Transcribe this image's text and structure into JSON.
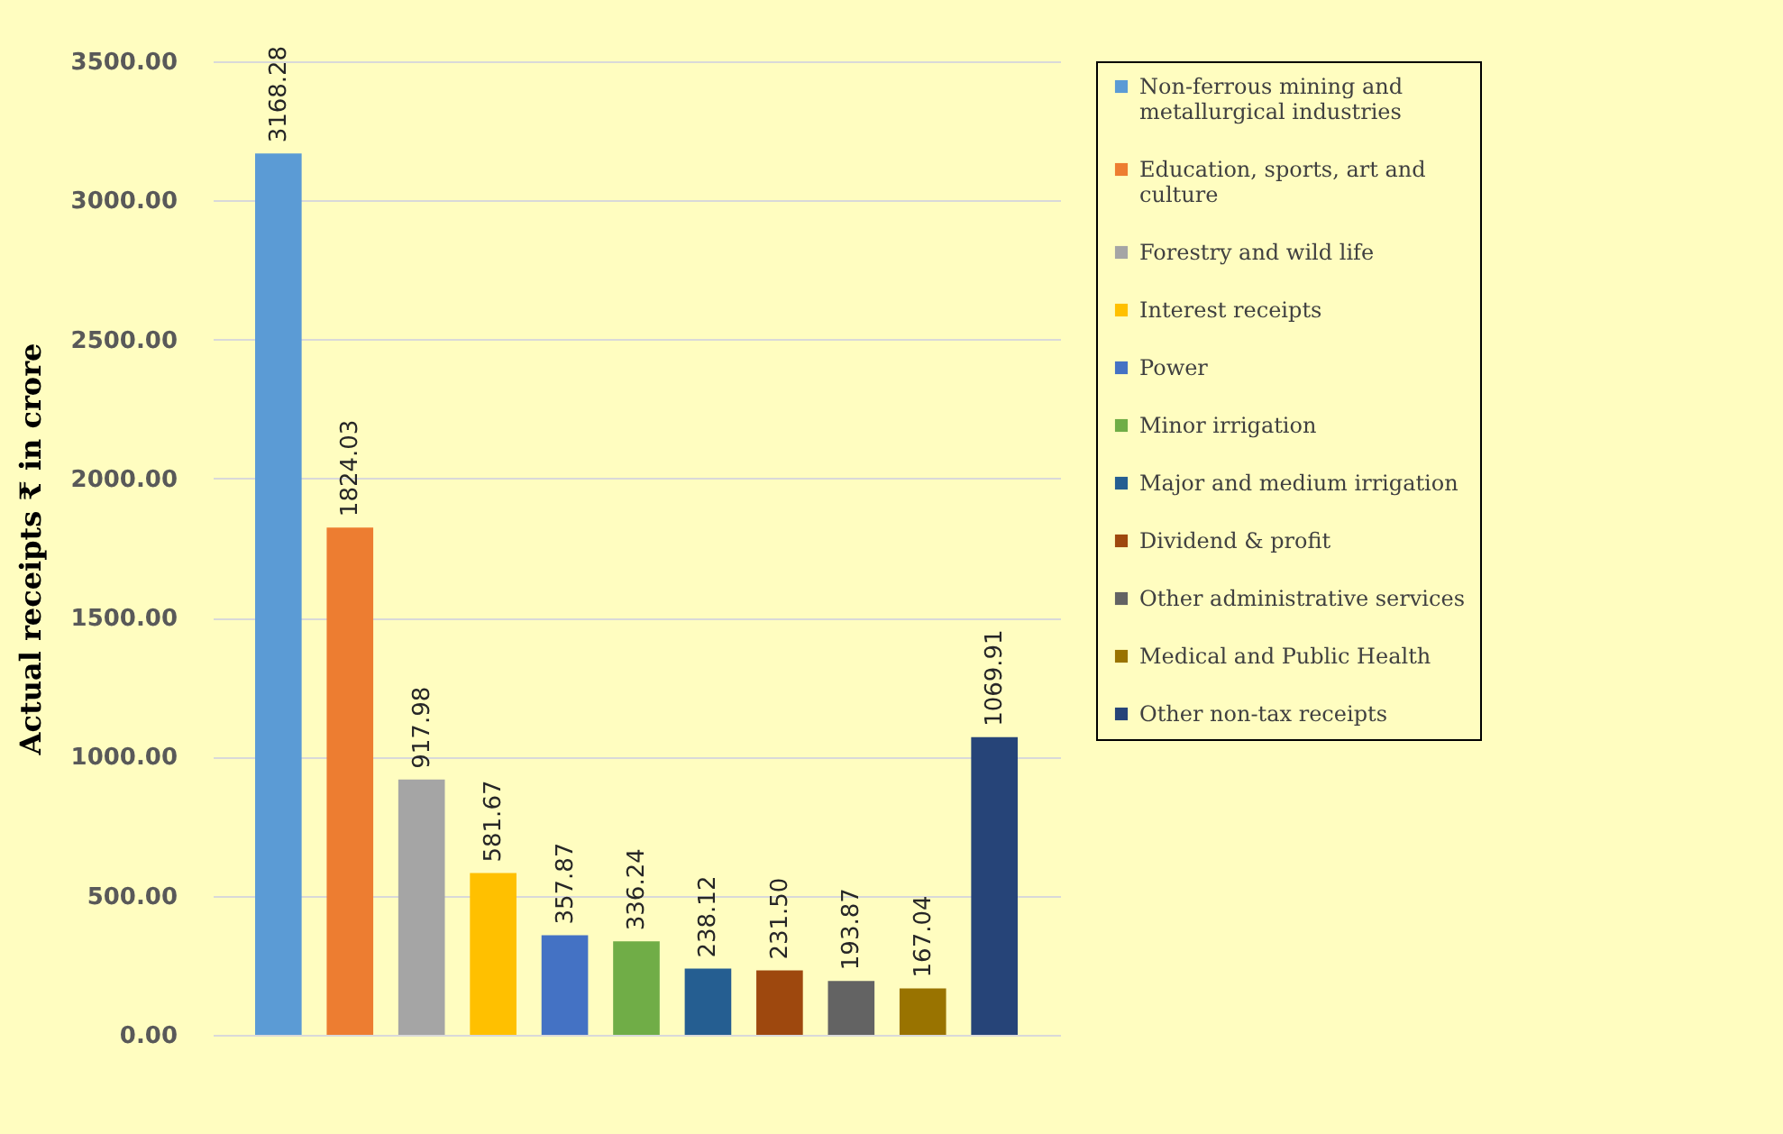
{
  "chart_data": {
    "type": "bar",
    "ylabel": "Actual receipts ₹ in crore",
    "categories": [
      null
    ],
    "series": [
      {
        "name": "Non-ferrous mining and metallurgical industries",
        "color": "#5b9bd5",
        "values": [
          3168.28
        ],
        "value_labels": [
          "3168.28"
        ]
      },
      {
        "name": "Education,   sports, art and culture",
        "color": "#ed7d31",
        "values": [
          1824.03
        ],
        "value_labels": [
          "1824.03"
        ]
      },
      {
        "name": "Forestry and wild life",
        "color": "#a5a5a5",
        "values": [
          917.98
        ],
        "value_labels": [
          "917.98"
        ]
      },
      {
        "name": "Interest receipts",
        "color": "#ffc000",
        "values": [
          581.67
        ],
        "value_labels": [
          "581.67"
        ]
      },
      {
        "name": "Power",
        "color": "#4472c4",
        "values": [
          357.87
        ],
        "value_labels": [
          "357.87"
        ]
      },
      {
        "name": "Minor irrigation",
        "color": "#70ad47",
        "values": [
          336.24
        ],
        "value_labels": [
          "336.24"
        ]
      },
      {
        "name": "Major and medium irrigation",
        "color": "#255e91",
        "values": [
          238.12
        ],
        "value_labels": [
          "238.12"
        ]
      },
      {
        "name": "Dividend & profit",
        "color": "#9e480e",
        "values": [
          231.5
        ],
        "value_labels": [
          "231.50"
        ]
      },
      {
        "name": "Other administrative services",
        "color": "#636363",
        "values": [
          193.87
        ],
        "value_labels": [
          "193.87"
        ]
      },
      {
        "name": "Medical and Public Health",
        "color": "#997300",
        "values": [
          167.04
        ],
        "value_labels": [
          "167.04"
        ]
      },
      {
        "name": "Other non-tax receipts",
        "color": "#264478",
        "values": [
          1069.91
        ],
        "value_labels": [
          "1069.91"
        ]
      }
    ],
    "ylim": [
      0,
      3500
    ],
    "yticks": [
      {
        "value": 0,
        "label": "0.00"
      },
      {
        "value": 500,
        "label": "500.00"
      },
      {
        "value": 1000,
        "label": "1000.00"
      },
      {
        "value": 1500,
        "label": "1500.00"
      },
      {
        "value": 2000,
        "label": "2000.00"
      },
      {
        "value": 2500,
        "label": "2500.00"
      },
      {
        "value": 3000,
        "label": "3000.00"
      },
      {
        "value": 3500,
        "label": "3500.00"
      }
    ],
    "grid": "y",
    "legend": "right",
    "tick_labels": "y"
  }
}
